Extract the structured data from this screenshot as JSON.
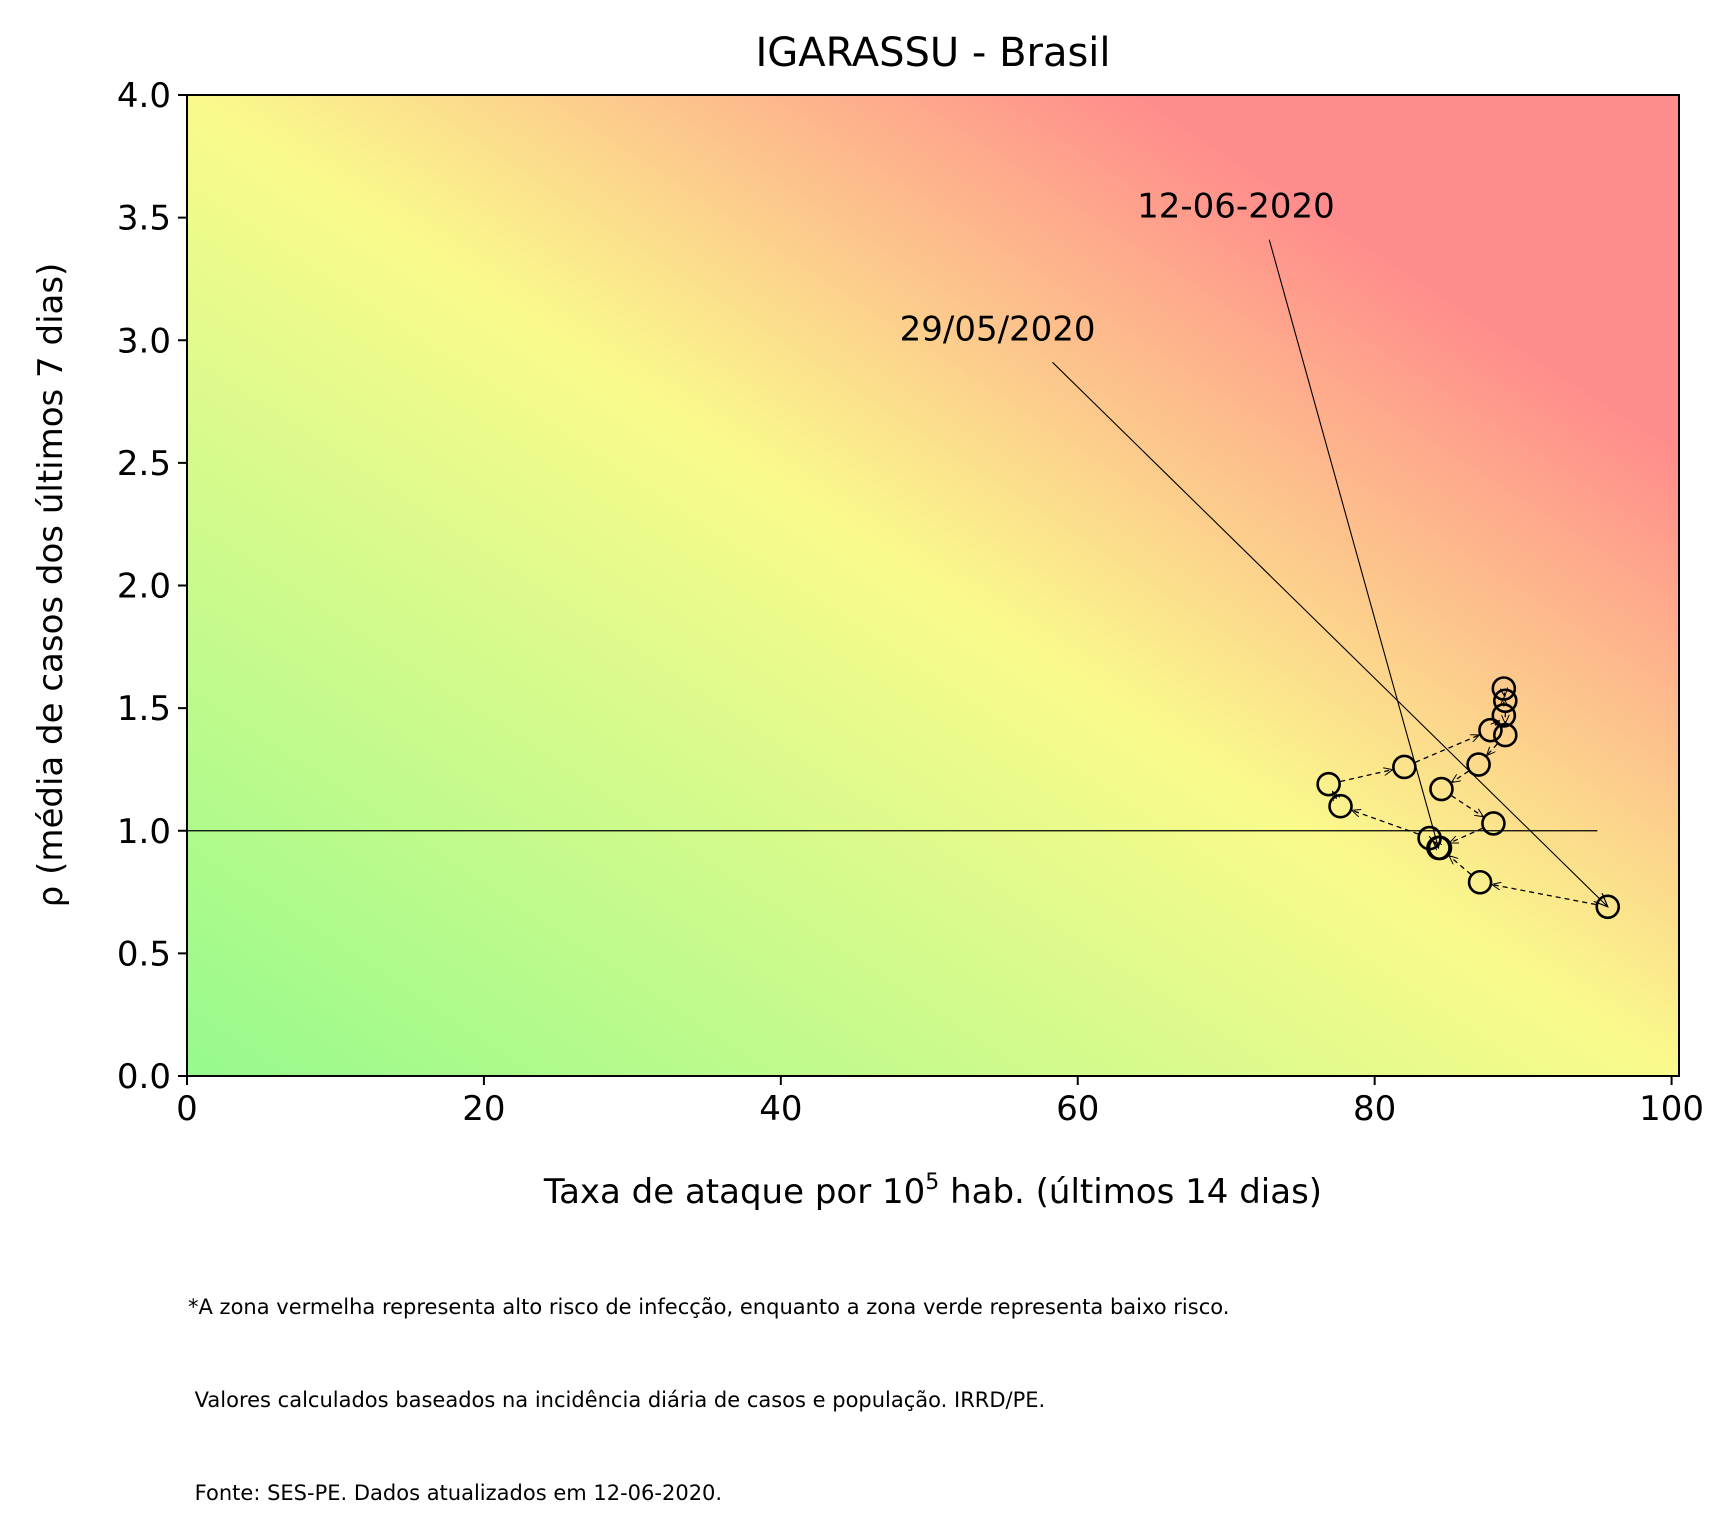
{
  "chart_data": {
    "type": "scatter",
    "title": "IGARASSU - Brasil",
    "xlabel_prefix": "Taxa de ataque por 10",
    "xlabel_sup": "5",
    "xlabel_suffix": " hab. (últimos 14 dias)",
    "ylabel": "ρ (média de casos dos últimos 7 dias)",
    "xlim": [
      0,
      100.5
    ],
    "ylim": [
      0,
      4.0
    ],
    "xticks": [
      0,
      20,
      40,
      60,
      80,
      100
    ],
    "xtick_labels": [
      "0",
      "20",
      "40",
      "60",
      "80",
      "100"
    ],
    "yticks": [
      0.0,
      0.5,
      1.0,
      1.5,
      2.0,
      2.5,
      3.0,
      3.5,
      4.0
    ],
    "ytick_labels": [
      "0.0",
      "0.5",
      "1.0",
      "1.5",
      "2.0",
      "2.5",
      "3.0",
      "3.5",
      "4.0"
    ],
    "grid": false,
    "background": {
      "description": "risk gradient",
      "low_color": "#96fa8c",
      "mid_color": "#fafa8c",
      "high_color": "#ff8c8c"
    },
    "reference_line": {
      "y": 1.0,
      "x_start": 0,
      "x_end": 95
    },
    "points": [
      {
        "x": 95.7,
        "y": 0.69
      },
      {
        "x": 87.1,
        "y": 0.79
      },
      {
        "x": 84.4,
        "y": 0.93
      },
      {
        "x": 83.7,
        "y": 0.97
      },
      {
        "x": 77.7,
        "y": 1.1
      },
      {
        "x": 76.9,
        "y": 1.19
      },
      {
        "x": 82.0,
        "y": 1.26
      },
      {
        "x": 87.8,
        "y": 1.41
      },
      {
        "x": 88.7,
        "y": 1.47
      },
      {
        "x": 88.7,
        "y": 1.58
      },
      {
        "x": 88.8,
        "y": 1.53
      },
      {
        "x": 88.8,
        "y": 1.39
      },
      {
        "x": 87.0,
        "y": 1.27
      },
      {
        "x": 84.5,
        "y": 1.17
      },
      {
        "x": 88.0,
        "y": 1.03
      },
      {
        "x": 84.3,
        "y": 0.93
      }
    ],
    "annotations": [
      {
        "text": "29/05/2020",
        "text_x": 48,
        "text_y": 3.0,
        "arrow_start": [
          58.3,
          2.91
        ],
        "arrow_end": [
          95.7,
          0.69
        ]
      },
      {
        "text": "12-06-2020",
        "text_x": 64,
        "text_y": 3.5,
        "arrow_start": [
          72.9,
          3.41
        ],
        "arrow_end": [
          84.3,
          0.93
        ]
      }
    ]
  },
  "footnote": [
    "*A zona vermelha representa alto risco de infecção, enquanto a zona verde representa baixo risco.",
    " Valores calculados baseados na incidência diária de casos e população. IRRD/PE.",
    " Fonte: SES-PE. Dados atualizados em 12-06-2020."
  ]
}
